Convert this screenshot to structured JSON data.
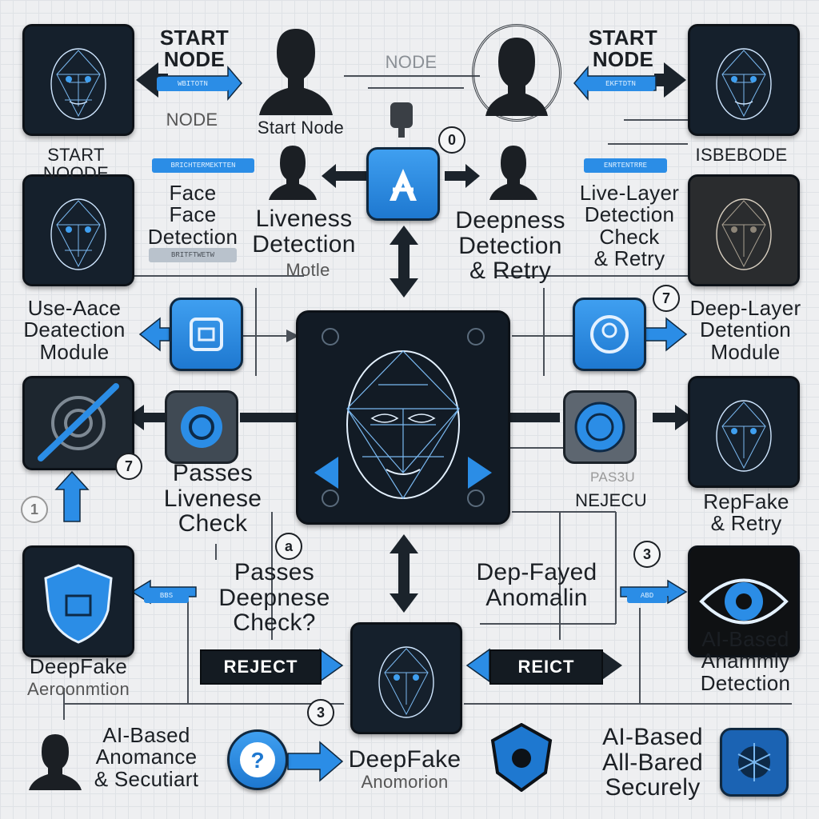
{
  "colors": {
    "accent": "#2b8de6",
    "tile_bg": "#15202c",
    "canvas": "#eeeff1",
    "line": "#4a5058"
  },
  "top": {
    "start_node_left": "START\nNODE",
    "start_node_right": "START\nNODE",
    "start_node_small": "Start Node",
    "node_left": "NODE",
    "node_ghost": "NODE",
    "start_noode": "START NOODE",
    "isbebode": "ISBEBODE",
    "step_zero": "0"
  },
  "steps": {
    "first": "7",
    "right_seven": "7",
    "left_a": "a",
    "right_three": "3",
    "bottom_three": "3",
    "left_ghost_one": "1"
  },
  "labels": {
    "face_detection": "Face\nFace\nDetection",
    "liveness_detection": "Liveness\nDetection",
    "motle": "Motle",
    "deepness_detection": "Deepness\nDetection\n& Retry",
    "live_layer": "Live-Layer\nDetection\nCheck\n& Retry",
    "use_aace": "Use-Aace\nDeatection\nModule",
    "deep_layer": "Deep-Layer\nDetention\nModule",
    "passes_liveness": "Passes\nLivenese\nCheck",
    "reject_lower": "NEJECU",
    "reject_lower_ghost": "PAS3U",
    "repfake": "RepFake\n& Retry",
    "passes_deepness": "Passes\nDeepnese\nCheck?",
    "dep_fayed": "Dep-Fayed\nAnomalin",
    "deepfake_left": "DeepFake",
    "deepfake_left_sub": "Aeroonmtion",
    "ai_based_right": "AI-Based\nAnammly\nDetection",
    "ai_based_bottom_left": "AI-Based\nAnomance\n& Secutiart",
    "deepfake_bottom": "DeepFake",
    "deepfake_bottom_sub": "Anomorion",
    "ai_based_bottom_right": "AI-Based\nAll-Bared\nSecurely"
  },
  "banners": {
    "reject_left": "REJECT",
    "reject_right": "REICT"
  },
  "pills": [
    "WBITOTN",
    "EKFTDTN",
    "BRICHTERMEKTTEN",
    "ENRTENTRRE",
    "BRITFTWETW",
    "BBS",
    "ABD"
  ],
  "icons": [
    "face-mesh-icon",
    "head-silhouette-icon",
    "woman-silhouette-icon",
    "app-logo-icon",
    "shield-icon",
    "eye-icon",
    "question-icon",
    "crossed-slash-icon",
    "spider-badge-icon"
  ]
}
